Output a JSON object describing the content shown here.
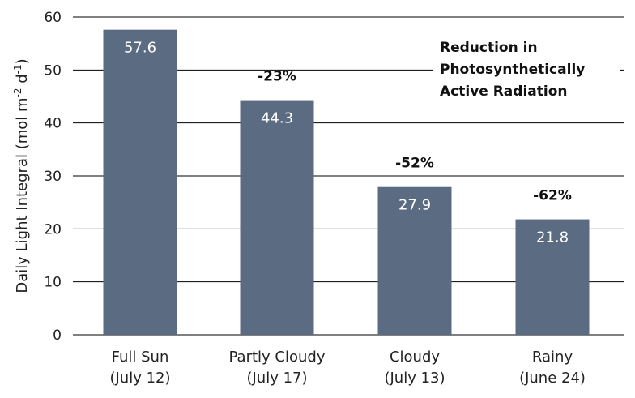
{
  "chart_data": {
    "type": "bar",
    "title": "",
    "xlabel": "",
    "ylabel": "Daily Light Integral (mol m",
    "ylabel_parts": {
      "prefix": "Daily Light Integral (mol m",
      "sup1": "-2",
      "mid": " d",
      "sup2": "-1",
      "suffix": ")"
    },
    "ylim": [
      0,
      60
    ],
    "yticks": [
      "0",
      "10",
      "20",
      "30",
      "40",
      "50",
      "60"
    ],
    "grid": true,
    "bar_color": "#5b6b82",
    "categories": [
      {
        "line1": "Full Sun",
        "line2": "(July 12)"
      },
      {
        "line1": "Partly Cloudy",
        "line2": "(July 17)"
      },
      {
        "line1": "Cloudy",
        "line2": "(July 13)"
      },
      {
        "line1": "Rainy",
        "line2": "(June 24)"
      }
    ],
    "values": [
      57.6,
      44.3,
      27.9,
      21.8
    ],
    "value_labels": [
      "57.6",
      "44.3",
      "27.9",
      "21.8"
    ],
    "reductions": [
      "",
      "-23%",
      "-52%",
      "-62%"
    ],
    "annotation": {
      "lines": [
        "Reduction in",
        "Photosynthetically",
        "Active Radiation"
      ],
      "placement": "top-right"
    }
  }
}
